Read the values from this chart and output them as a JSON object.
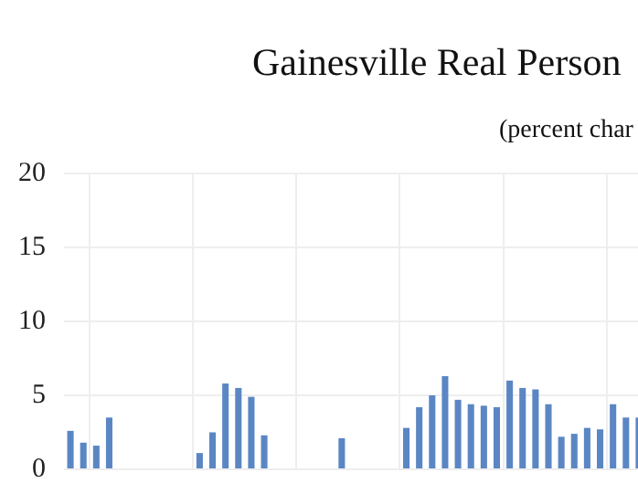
{
  "chart_data": {
    "type": "bar",
    "title": "Gainesville Real Person",
    "subtitle": "(percent char",
    "categories": [
      null,
      null,
      null,
      null,
      null,
      null,
      null,
      null,
      null,
      null,
      null,
      null,
      null,
      null,
      null,
      null,
      null,
      null,
      null,
      null,
      null,
      null,
      null,
      null,
      null,
      null,
      null,
      null,
      null,
      null,
      null,
      null,
      null,
      null,
      null,
      null,
      null,
      null,
      null,
      null,
      null,
      null,
      null,
      null,
      null
    ],
    "series": [
      {
        "color": "#5b86c4",
        "values": [
          2.6,
          1.8,
          1.6,
          3.5,
          0,
          0,
          0,
          0,
          0,
          0,
          1.1,
          2.5,
          5.8,
          5.5,
          4.9,
          2.3,
          0,
          0,
          0,
          0,
          0,
          2.1,
          0,
          0,
          0,
          0,
          2.8,
          4.2,
          5.0,
          6.3,
          4.7,
          4.4,
          4.3,
          4.2,
          6.0,
          5.5,
          5.4,
          4.4,
          2.2,
          2.4,
          2.8,
          2.7,
          4.4,
          3.5,
          3.5
        ]
      }
    ],
    "ylim": [
      0,
      20
    ],
    "yticks": [
      0,
      5,
      10,
      15,
      20
    ],
    "grid": true,
    "legend": false,
    "tick_labels": "y"
  }
}
